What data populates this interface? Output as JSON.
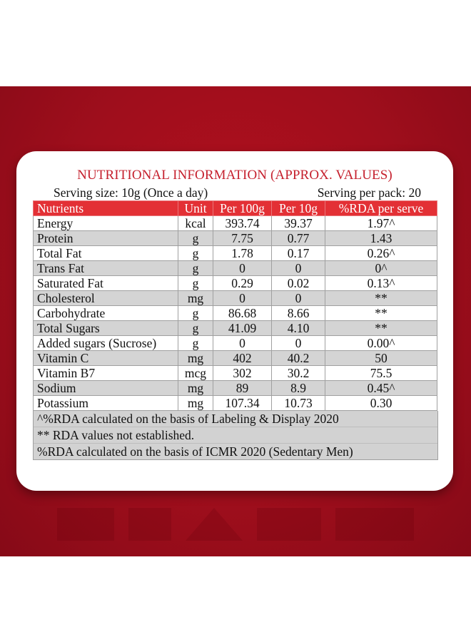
{
  "panel": {
    "title": "NUTRITIONAL INFORMATION (APPROX. VALUES)",
    "serving_size": "Serving size: 10g (Once a day)",
    "serving_per_pack": "Serving per pack: 20"
  },
  "colors": {
    "background_red": "#9f0e1c",
    "header_red": "#e33035",
    "title_red": "#c5202d",
    "row_grey": "#d4d4d4"
  },
  "table": {
    "headers": [
      "Nutrients",
      "Unit",
      "Per 100g",
      "Per 10g",
      "%RDA per serve"
    ],
    "rows": [
      [
        "Energy",
        "kcal",
        "393.74",
        "39.37",
        "1.97^"
      ],
      [
        "Protein",
        "g",
        "7.75",
        "0.77",
        "1.43"
      ],
      [
        "Total Fat",
        "g",
        "1.78",
        "0.17",
        "0.26^"
      ],
      [
        "Trans Fat",
        "g",
        "0",
        "0",
        "0^"
      ],
      [
        "Saturated Fat",
        "g",
        "0.29",
        "0.02",
        "0.13^"
      ],
      [
        "Cholesterol",
        "mg",
        "0",
        "0",
        "**"
      ],
      [
        "Carbohydrate",
        "g",
        "86.68",
        "8.66",
        "**"
      ],
      [
        "Total Sugars",
        "g",
        "41.09",
        "4.10",
        "**"
      ],
      [
        "Added sugars (Sucrose)",
        "g",
        "0",
        "0",
        "0.00^"
      ],
      [
        "Vitamin C",
        "mg",
        "402",
        "40.2",
        "50"
      ],
      [
        "Vitamin B7",
        "mcg",
        "302",
        "30.2",
        "75.5"
      ],
      [
        "Sodium",
        "mg",
        "89",
        "8.9",
        "0.45^"
      ],
      [
        "Potassium",
        "mg",
        "107.34",
        "10.73",
        "0.30"
      ]
    ]
  },
  "notes": [
    "^%RDA calculated on the basis of Labeling & Display 2020",
    "** RDA values not established.",
    "%RDA calculated on the basis of ICMR 2020 (Sedentary Men)"
  ]
}
